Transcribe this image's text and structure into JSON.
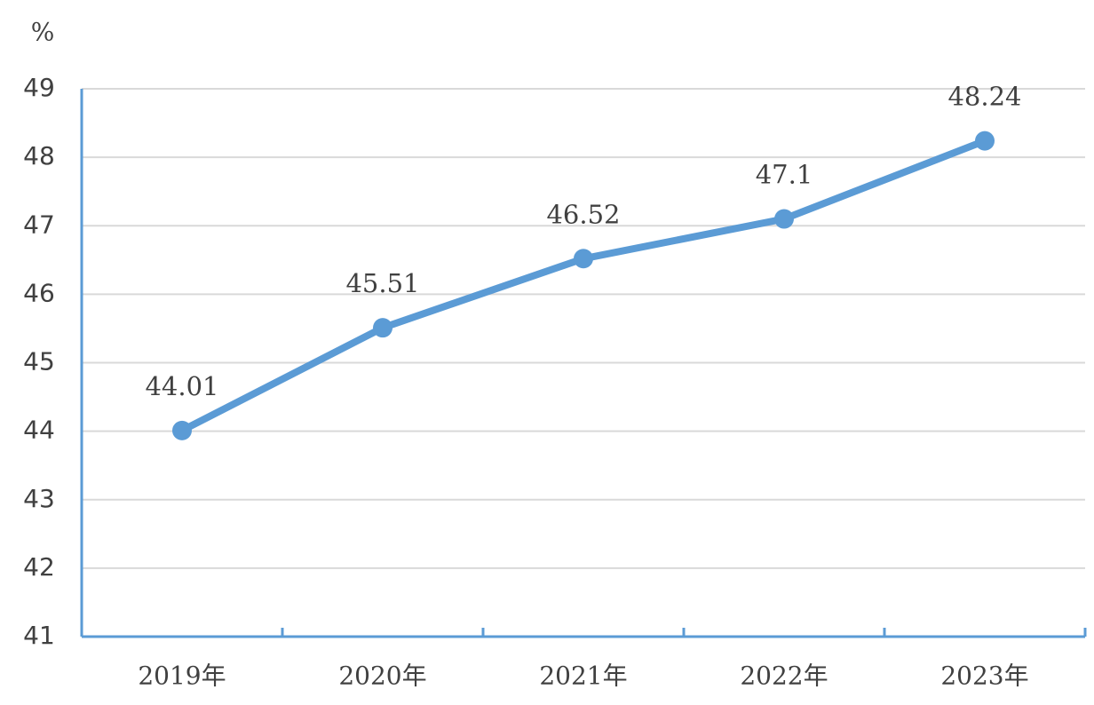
{
  "chart_data": {
    "type": "line",
    "y_label": "%",
    "categories": [
      "2019年",
      "2020年",
      "2021年",
      "2022年",
      "2023年"
    ],
    "values": [
      44.01,
      45.51,
      46.52,
      47.1,
      48.24
    ],
    "color": "#5b9bd5",
    "ylim": [
      41,
      49
    ],
    "yticks": [
      41,
      42,
      43,
      44,
      45,
      46,
      47,
      48,
      49
    ],
    "grid": true
  }
}
